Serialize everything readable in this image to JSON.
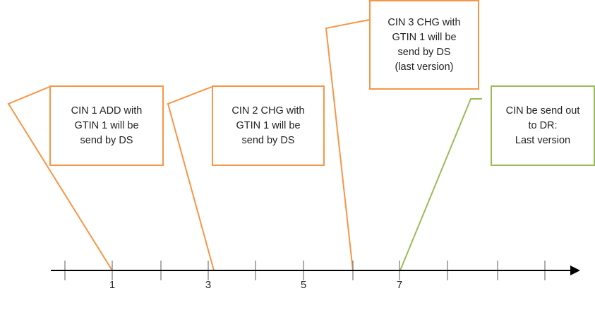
{
  "colors": {
    "orange": "#f79646",
    "green": "#9bbb59",
    "axis": "#000000",
    "tick": "#7f7f7f",
    "text": "#222222"
  },
  "timeline": {
    "tick_labels": [
      {
        "label": "1",
        "position": 1
      },
      {
        "label": "3",
        "position": 3
      },
      {
        "label": "5",
        "position": 5
      },
      {
        "label": "7",
        "position": 7
      }
    ]
  },
  "callouts": [
    {
      "name": "callout-cin1-add",
      "color": "orange",
      "anchor_position": 1,
      "lines": [
        "CIN 1 ADD with",
        "GTIN 1 will be",
        "send by DS"
      ]
    },
    {
      "name": "callout-cin2-chg",
      "color": "orange",
      "anchor_position": 3,
      "lines": [
        "CIN 2 CHG with",
        "GTIN 1 will be",
        "send by DS"
      ]
    },
    {
      "name": "callout-cin3-chg",
      "color": "orange",
      "anchor_position": 6,
      "lines": [
        "CIN 3 CHG with",
        "GTIN 1 will be",
        "send by DS",
        "(last version)"
      ]
    },
    {
      "name": "callout-cin-send-out",
      "color": "green",
      "anchor_position": 7,
      "lines": [
        "CIN be send out",
        "to DR:",
        "Last version"
      ]
    }
  ]
}
